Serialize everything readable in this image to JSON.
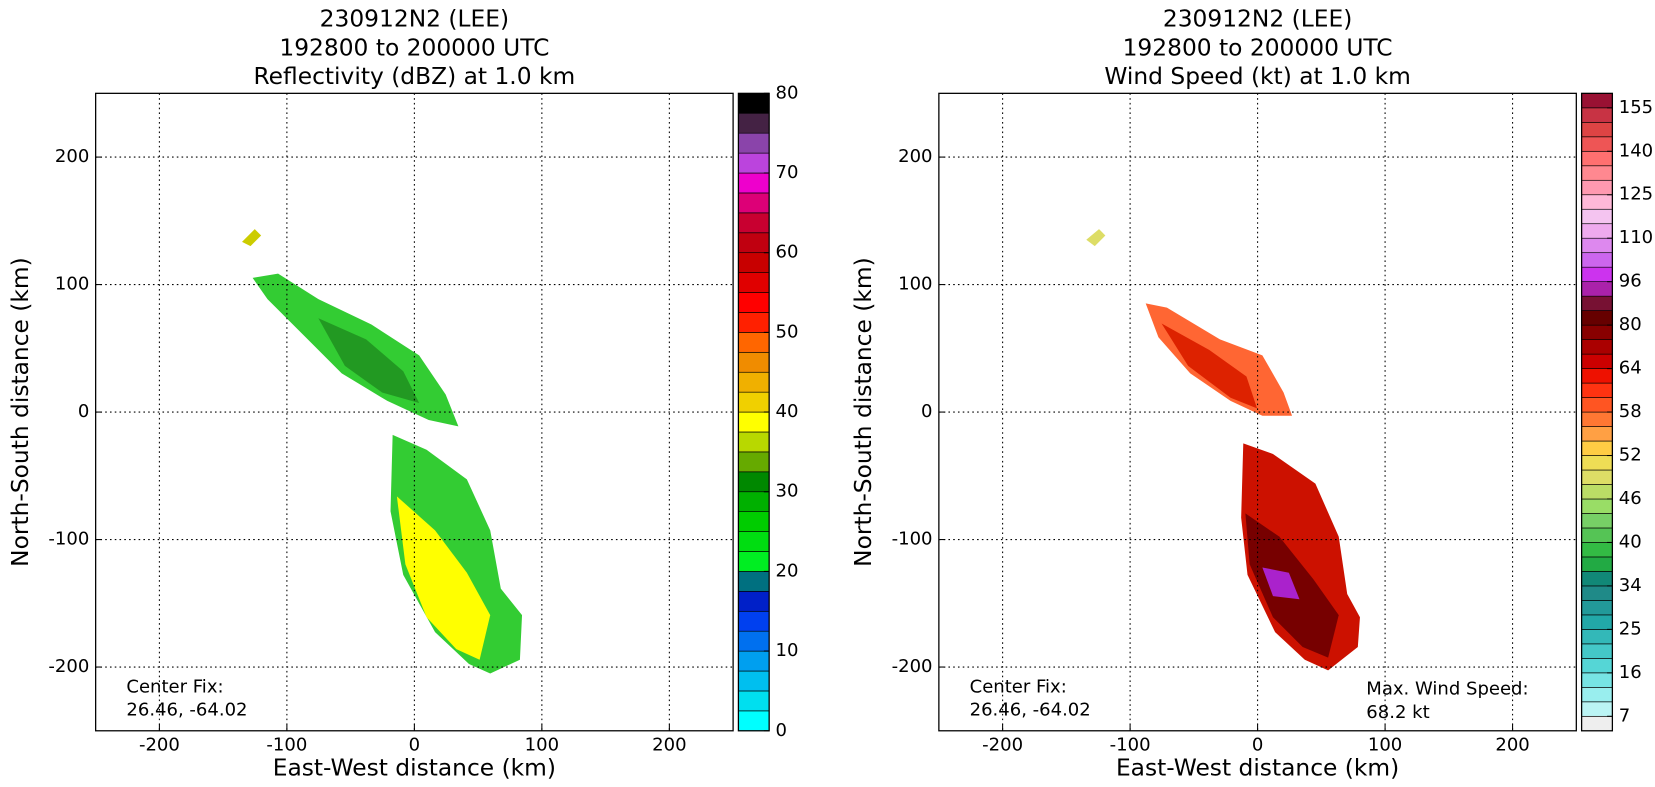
{
  "chart_data": [
    {
      "type": "radar",
      "title": [
        "230912N2 (LEE)",
        "192800 to 200000 UTC",
        "Reflectivity (dBZ) at 1.0 km"
      ],
      "xlabel": "East-West distance (km)",
      "ylabel": "North-South distance (km)",
      "xlim": [
        -250,
        250
      ],
      "ylim": [
        -250,
        250
      ],
      "xticks": [
        -200,
        -100,
        0,
        100,
        200
      ],
      "yticks": [
        -200,
        -100,
        0,
        100,
        200
      ],
      "grid": true,
      "annotations": [
        {
          "text": [
            "Center Fix:",
            "26.46, -64.02"
          ],
          "corner": "lower left"
        }
      ],
      "colorbar": {
        "lim": [
          0,
          80
        ],
        "ticks": [
          0,
          10,
          20,
          30,
          40,
          50,
          60,
          70,
          80
        ],
        "colors": [
          "#00ffff",
          "#00dfef",
          "#00bfef",
          "#009fef",
          "#0070ef",
          "#0040ef",
          "#0020c8",
          "#007080",
          "#00ee22",
          "#00dd11",
          "#00cc00",
          "#00b000",
          "#008800",
          "#66aa00",
          "#b8d800",
          "#ffff00",
          "#f0d000",
          "#f0b000",
          "#f08c00",
          "#ff6600",
          "#ff2000",
          "#ff0000",
          "#e00000",
          "#c80000",
          "#c00010",
          "#c80030",
          "#dd0077",
          "#ee00cc",
          "#bb44dd",
          "#8a44aa",
          "#442244",
          "#000000"
        ]
      }
    },
    {
      "type": "radar",
      "title": [
        "230912N2 (LEE)",
        "192800 to 200000 UTC",
        "Wind Speed (kt) at 1.0 km"
      ],
      "xlabel": "East-West distance (km)",
      "ylabel": "North-South distance (km)",
      "xlim": [
        -250,
        250
      ],
      "ylim": [
        -250,
        250
      ],
      "xticks": [
        -200,
        -100,
        0,
        100,
        200
      ],
      "yticks": [
        -200,
        -100,
        0,
        100,
        200
      ],
      "grid": true,
      "annotations": [
        {
          "text": [
            "Center Fix:",
            "26.46, -64.02"
          ],
          "corner": "lower left"
        },
        {
          "text": [
            "Max. Wind Speed:",
            "68.2 kt"
          ],
          "corner": "lower right"
        }
      ],
      "colorbar": {
        "ticks": [
          7,
          16,
          25,
          34,
          40,
          46,
          52,
          58,
          64,
          80,
          96,
          110,
          125,
          140,
          155
        ],
        "colors": [
          "#eeeeee",
          "#bbf4f4",
          "#99eeee",
          "#77e4e4",
          "#55d6d6",
          "#44c8c8",
          "#33b8b8",
          "#22a8a8",
          "#229999",
          "#1f8a88",
          "#118877",
          "#22aa44",
          "#33bb44",
          "#55c455",
          "#77d066",
          "#99dd66",
          "#bbdd66",
          "#dddd66",
          "#eedd55",
          "#ffcc44",
          "#ffa044",
          "#ff7733",
          "#ff5522",
          "#ff3311",
          "#ee1100",
          "#cc0000",
          "#aa0000",
          "#880000",
          "#660000",
          "#771133",
          "#aa22aa",
          "#cc33ee",
          "#cc66ee",
          "#dd88ee",
          "#eeaaee",
          "#f4c4f0",
          "#ffb8d8",
          "#ff99b0",
          "#ff8890",
          "#ff7070",
          "#ee5555",
          "#dd4444",
          "#c83344",
          "#991133"
        ]
      }
    }
  ]
}
